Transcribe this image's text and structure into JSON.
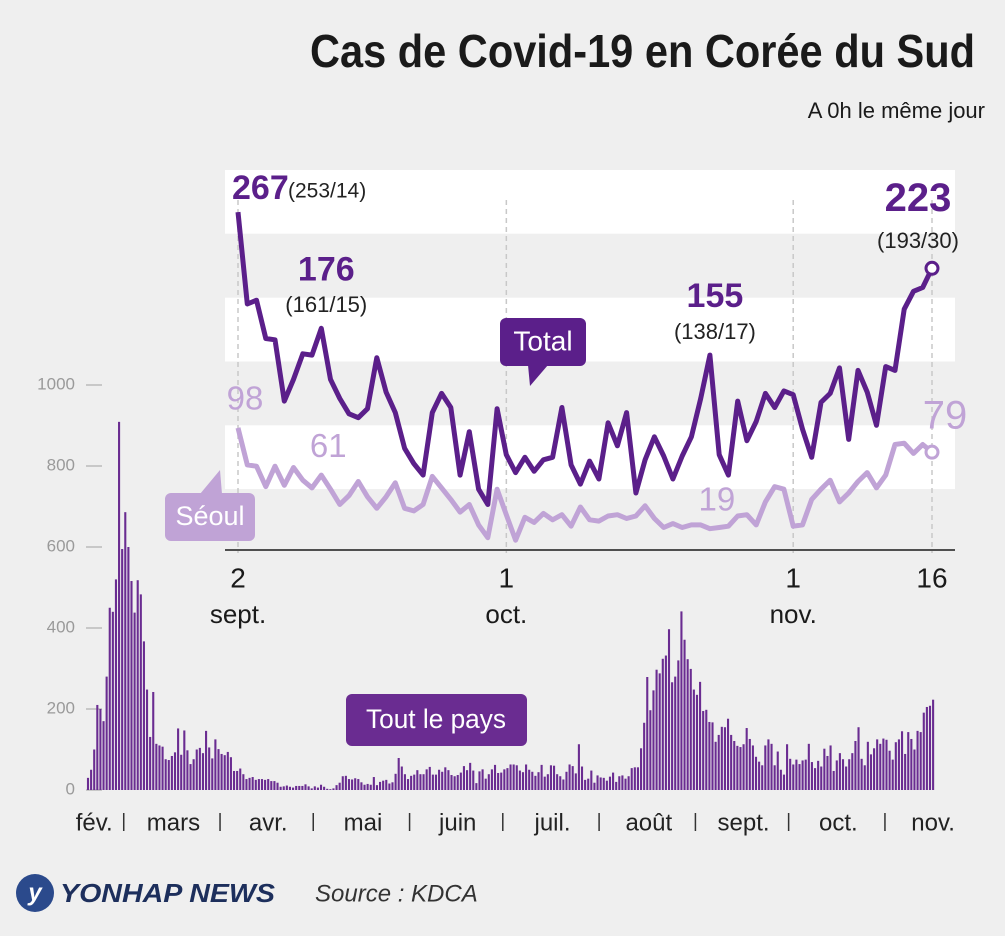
{
  "title": "Cas de Covid-19 en Corée du Sud",
  "subtitle": "A 0h le même jour",
  "source": "Source : KDCA",
  "logo": "YONHAP NEWS",
  "chart_data": [
    {
      "type": "bar",
      "x_labels": [
        "fév.",
        "mars",
        "avr.",
        "mai",
        "juin",
        "juil.",
        "août",
        "sept.",
        "oct.",
        "nov."
      ],
      "ylim": [
        0,
        1000
      ],
      "yticks": [
        0,
        200,
        400,
        600,
        800,
        1000
      ],
      "series": [
        {
          "name": "Tout le pays",
          "color": "#6a2c91",
          "values": [
            30,
            50,
            100,
            210,
            200,
            170,
            280,
            450,
            440,
            520,
            909,
            595,
            686,
            600,
            516,
            438,
            518,
            483,
            367,
            248,
            131,
            242,
            114,
            110,
            107,
            76,
            74,
            84,
            93,
            152,
            87,
            147,
            98,
            64,
            76,
            100,
            104,
            91,
            146,
            105,
            78,
            125,
            101,
            89,
            86,
            94,
            81,
            47,
            47,
            53,
            39,
            27,
            30,
            32,
            25,
            27,
            27,
            25,
            27,
            22,
            22,
            18,
            8,
            9,
            11,
            8,
            6,
            10,
            10,
            10,
            14,
            9,
            4,
            9,
            6,
            13,
            8,
            3,
            2,
            4,
            12,
            18,
            34,
            35,
            27,
            26,
            29,
            27,
            19,
            13,
            15,
            13,
            32,
            12,
            20,
            23,
            25,
            16,
            19,
            40,
            79,
            58,
            39,
            27,
            35,
            38,
            49,
            39,
            39,
            51,
            57,
            38,
            38,
            50,
            45,
            56,
            49,
            37,
            34,
            37,
            43,
            59,
            49,
            67,
            48,
            17,
            46,
            51,
            28,
            39,
            51,
            62,
            42,
            43,
            51,
            54,
            63,
            63,
            61,
            48,
            44,
            63,
            50,
            45,
            35,
            44,
            62,
            33,
            39,
            61,
            60,
            39,
            34,
            26,
            45,
            63,
            59,
            41,
            113,
            58,
            25,
            28,
            48,
            18,
            36,
            31,
            30,
            23,
            33,
            43,
            20,
            34,
            36,
            28,
            34,
            54,
            56,
            56,
            103,
            166,
            279,
            197,
            246,
            297,
            288,
            324,
            332,
            397,
            266,
            280,
            320,
            441,
            371,
            323,
            299,
            248,
            235,
            267,
            195,
            198,
            168,
            167,
            119,
            136,
            156,
            155,
            176,
            136,
            121,
            109,
            106,
            113,
            153,
            126,
            110,
            82,
            70,
            61,
            110,
            125,
            114,
            61,
            95,
            50,
            38,
            113,
            77,
            63,
            75,
            64,
            73,
            75,
            114,
            69,
            54,
            72,
            58,
            102,
            84,
            110,
            47,
            73,
            91,
            76,
            58,
            76,
            91,
            121,
            155,
            77,
            61,
            119,
            88,
            103,
            125,
            114,
            127,
            124,
            97,
            75,
            118,
            125,
            145,
            89,
            143,
            126,
            100,
            146,
            143,
            191,
            205,
            208,
            223
          ]
        }
      ]
    },
    {
      "type": "line",
      "ylim": [
        0,
        300
      ],
      "categories": [
        [
          "2",
          "sept."
        ],
        null,
        null,
        null,
        null,
        null,
        null,
        null,
        null,
        null,
        null,
        null,
        null,
        null,
        null,
        null,
        null,
        null,
        null,
        null,
        null,
        null,
        null,
        null,
        null,
        null,
        null,
        null,
        null,
        [
          "1",
          "oct."
        ],
        null,
        null,
        null,
        null,
        null,
        null,
        null,
        null,
        null,
        null,
        null,
        null,
        null,
        null,
        null,
        null,
        null,
        null,
        null,
        null,
        null,
        null,
        null,
        null,
        null,
        null,
        null,
        null,
        null,
        null,
        [
          "1",
          "nov."
        ],
        null,
        null,
        null,
        null,
        null,
        null,
        null,
        null,
        null,
        null,
        null,
        null,
        null,
        null,
        [
          "16"
        ]
      ],
      "series": [
        {
          "name": "Total",
          "color": "#5b1f8a",
          "values": [
            267,
            195,
            198,
            168,
            167,
            119,
            136,
            156,
            155,
            176,
            136,
            121,
            109,
            106,
            113,
            153,
            126,
            110,
            82,
            70,
            61,
            110,
            125,
            114,
            61,
            95,
            50,
            38,
            113,
            77,
            63,
            75,
            64,
            73,
            75,
            114,
            69,
            54,
            72,
            58,
            102,
            84,
            110,
            47,
            73,
            91,
            76,
            58,
            76,
            91,
            121,
            155,
            77,
            61,
            119,
            88,
            103,
            125,
            114,
            127,
            124,
            97,
            75,
            118,
            125,
            145,
            89,
            143,
            126,
            100,
            146,
            143,
            191,
            205,
            208,
            223
          ],
          "value_labels": [
            "267",
            null,
            null,
            null,
            null,
            null,
            null,
            null,
            null,
            "176",
            null,
            null,
            null,
            null,
            null,
            null,
            null,
            null,
            null,
            null,
            null,
            null,
            null,
            null,
            null,
            null,
            null,
            null,
            null,
            null,
            null,
            null,
            null,
            null,
            null,
            null,
            null,
            null,
            null,
            null,
            null,
            null,
            null,
            null,
            null,
            null,
            null,
            null,
            null,
            null,
            null,
            "155",
            null,
            null,
            null,
            null,
            null,
            null,
            null,
            null,
            null,
            null,
            null,
            null,
            null,
            null,
            null,
            null,
            null,
            null,
            null,
            null,
            null,
            null,
            null,
            "223"
          ],
          "value_details": [
            "(253/14)",
            null,
            null,
            null,
            null,
            null,
            null,
            null,
            null,
            "(161/15)",
            null,
            null,
            null,
            null,
            null,
            null,
            null,
            null,
            null,
            null,
            null,
            null,
            null,
            null,
            null,
            null,
            null,
            null,
            null,
            null,
            null,
            null,
            null,
            null,
            null,
            null,
            null,
            null,
            null,
            null,
            null,
            null,
            null,
            null,
            null,
            null,
            null,
            null,
            null,
            null,
            null,
            "(138/17)",
            null,
            null,
            null,
            null,
            null,
            null,
            null,
            null,
            null,
            null,
            null,
            null,
            null,
            null,
            null,
            null,
            null,
            null,
            null,
            null,
            null,
            null,
            null,
            "(193/30)"
          ]
        },
        {
          "name": "Séoul",
          "color": "#c0a3d6",
          "values": [
            98,
            69,
            68,
            52,
            68,
            53,
            67,
            57,
            51,
            61,
            50,
            38,
            45,
            56,
            44,
            35,
            44,
            55,
            35,
            33,
            38,
            60,
            51,
            42,
            32,
            38,
            22,
            12,
            50,
            30,
            10,
            28,
            24,
            31,
            26,
            30,
            21,
            36,
            26,
            25,
            29,
            30,
            27,
            29,
            37,
            27,
            20,
            23,
            20,
            22,
            22,
            19,
            20,
            21,
            29,
            30,
            22,
            40,
            52,
            50,
            21,
            22,
            42,
            50,
            57,
            40,
            47,
            56,
            63,
            51,
            61,
            85,
            86,
            78,
            85,
            79
          ],
          "value_labels": [
            "98",
            null,
            null,
            null,
            null,
            null,
            null,
            null,
            null,
            "61",
            null,
            null,
            null,
            null,
            null,
            null,
            null,
            null,
            null,
            null,
            null,
            null,
            null,
            null,
            null,
            null,
            null,
            null,
            null,
            null,
            null,
            null,
            null,
            null,
            null,
            null,
            null,
            null,
            null,
            null,
            null,
            null,
            null,
            null,
            null,
            null,
            null,
            null,
            null,
            null,
            null,
            "19",
            null,
            null,
            null,
            null,
            null,
            null,
            null,
            null,
            null,
            null,
            null,
            null,
            null,
            null,
            null,
            null,
            null,
            null,
            null,
            null,
            null,
            null,
            null,
            "79"
          ]
        }
      ]
    }
  ]
}
